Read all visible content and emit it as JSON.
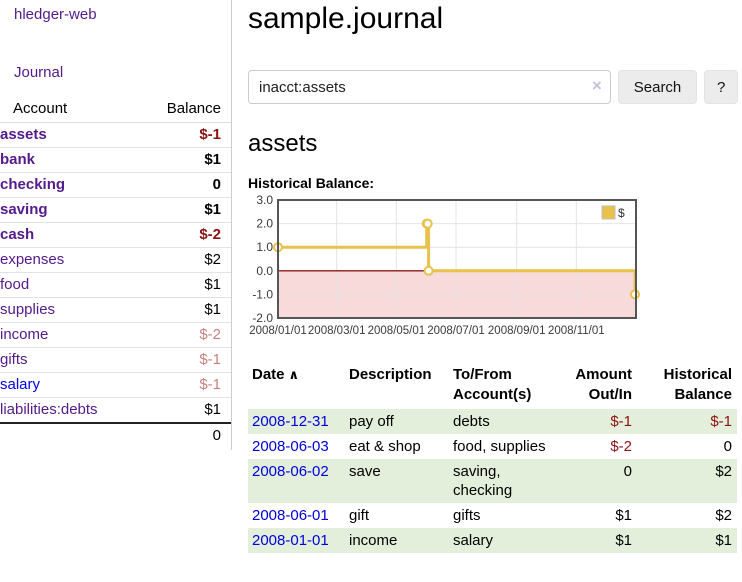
{
  "colors": {
    "link_purple": "#551a8b",
    "link_blue": "#0000dd",
    "negative": "#8b1212",
    "negative_soft": "#c8827f",
    "row_stripe_green": "#e3efdb",
    "chart_line_gold": "#e8c24a",
    "chart_negative_region_pink": "#f9dada",
    "chart_zero_line_red": "#8b1a1a"
  },
  "sidebar": {
    "app_title": "hledger-web",
    "journal_link": "Journal",
    "accounts_table": {
      "headers": {
        "account": "Account",
        "balance": "Balance"
      },
      "rows": [
        {
          "account": "assets",
          "balance": "$-1",
          "depth": 1,
          "bold": true,
          "balance_color": "negative"
        },
        {
          "account": "bank",
          "balance": "$1",
          "depth": 2,
          "bold": true,
          "balance_color": "normal"
        },
        {
          "account": "checking",
          "balance": "0",
          "depth": 3,
          "bold": true,
          "balance_color": "normal"
        },
        {
          "account": "saving",
          "balance": "$1",
          "depth": 3,
          "bold": true,
          "balance_color": "normal"
        },
        {
          "account": "cash",
          "balance": "$-2",
          "depth": 2,
          "bold": true,
          "balance_color": "negative"
        },
        {
          "account": "expenses",
          "balance": "$2",
          "depth": 1,
          "bold": false,
          "balance_color": "normal"
        },
        {
          "account": "food",
          "balance": "$1",
          "depth": 2,
          "bold": false,
          "balance_color": "normal"
        },
        {
          "account": "supplies",
          "balance": "$1",
          "depth": 2,
          "bold": false,
          "balance_color": "normal"
        },
        {
          "account": "income",
          "balance": "$-2",
          "depth": 1,
          "bold": false,
          "balance_color": "negative_soft"
        },
        {
          "account": "gifts",
          "balance": "$-1",
          "depth": 2,
          "bold": false,
          "balance_color": "negative_soft"
        },
        {
          "account": "salary",
          "balance": "$-1",
          "depth": 2,
          "bold": false,
          "balance_color": "negative_soft",
          "link_color": "blue"
        },
        {
          "account": "liabilities:debts",
          "balance": "$1",
          "depth": 1,
          "bold": false,
          "balance_color": "normal"
        }
      ],
      "total": "0"
    }
  },
  "main": {
    "title": "sample.journal",
    "search": {
      "value": "inacct:assets",
      "clear_icon": "×",
      "search_button": "Search",
      "help_button": "?"
    },
    "account_heading": "assets",
    "chart_title": "Historical Balance:",
    "register": {
      "headers": {
        "date": "Date",
        "description": "Description",
        "accounts": "To/From Account(s)",
        "amount": "Amount Out/In",
        "balance": "Historical Balance"
      },
      "sort_icon": "∧",
      "rows": [
        {
          "date": "2008-12-31",
          "description": "pay off",
          "accounts": "debts",
          "amount": "$-1",
          "balance": "$-1"
        },
        {
          "date": "2008-06-03",
          "description": "eat & shop",
          "accounts": "food, supplies",
          "amount": "$-2",
          "balance": "0"
        },
        {
          "date": "2008-06-02",
          "description": "save",
          "accounts": "saving, checking",
          "amount": "0",
          "balance": "$2"
        },
        {
          "date": "2008-06-01",
          "description": "gift",
          "accounts": "gifts",
          "amount": "$1",
          "balance": "$2"
        },
        {
          "date": "2008-01-01",
          "description": "income",
          "accounts": "salary",
          "amount": "$1",
          "balance": "$1"
        }
      ]
    }
  },
  "chart_data": {
    "type": "line",
    "title": "Historical Balance",
    "step": "after",
    "series": [
      {
        "name": "$",
        "points": [
          [
            "2008-01-01",
            1
          ],
          [
            "2008-06-01",
            2
          ],
          [
            "2008-06-02",
            2
          ],
          [
            "2008-06-03",
            0
          ],
          [
            "2008-12-31",
            -1
          ]
        ]
      }
    ],
    "ylim": [
      -2.0,
      3.0
    ],
    "yticks": [
      3.0,
      2.0,
      1.0,
      0.0,
      -1.0,
      -2.0
    ],
    "xticks": [
      "2008/01/01",
      "2008/03/01",
      "2008/05/01",
      "2008/07/01",
      "2008/09/01",
      "2008/11/01"
    ],
    "x_range": [
      "2008-01-01",
      "2009-01-01"
    ],
    "legend": {
      "label": "$",
      "position": "top-right"
    },
    "grid": true,
    "negative_region_shaded": true
  }
}
